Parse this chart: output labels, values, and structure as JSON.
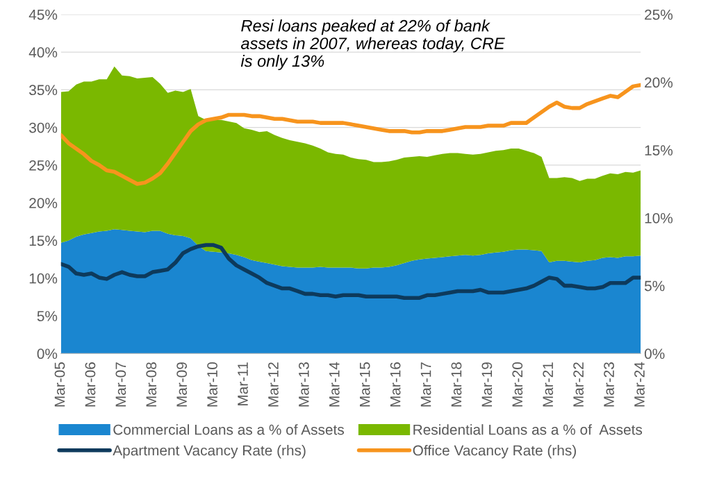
{
  "chart_data": {
    "type": "area",
    "stacked": true,
    "categories": [
      "Mar-05",
      null,
      null,
      null,
      "Mar-06",
      null,
      null,
      null,
      "Mar-07",
      null,
      null,
      null,
      "Mar-08",
      null,
      null,
      null,
      "Mar-09",
      null,
      null,
      null,
      "Mar-10",
      null,
      null,
      null,
      "Mar-11",
      null,
      null,
      null,
      "Mar-12",
      null,
      null,
      null,
      "Mar-13",
      null,
      null,
      null,
      "Mar-14",
      null,
      null,
      null,
      "Mar-15",
      null,
      null,
      null,
      "Mar-16",
      null,
      null,
      null,
      "Mar-17",
      null,
      null,
      null,
      "Mar-18",
      null,
      null,
      null,
      "Mar-19",
      null,
      null,
      null,
      "Mar-20",
      null,
      null,
      null,
      "Mar-21",
      null,
      null,
      null,
      "Mar-22",
      null,
      null,
      null,
      "Mar-23",
      null,
      null,
      null,
      "Mar-24"
    ],
    "series": [
      {
        "name": "Commercial Loans as a % of Assets",
        "color": "#1a86d0",
        "values": [
          14.7,
          15.0,
          15.5,
          15.8,
          16.0,
          16.2,
          16.3,
          16.5,
          16.4,
          16.3,
          16.2,
          16.1,
          16.3,
          16.3,
          15.9,
          15.7,
          15.6,
          15.3,
          14.3,
          13.6,
          13.5,
          13.4,
          13.3,
          13.1,
          12.8,
          12.4,
          12.2,
          12.0,
          11.8,
          11.6,
          11.5,
          11.4,
          11.4,
          11.4,
          11.5,
          11.4,
          11.4,
          11.4,
          11.4,
          11.3,
          11.3,
          11.4,
          11.4,
          11.5,
          11.7,
          12.0,
          12.3,
          12.5,
          12.6,
          12.7,
          12.8,
          12.9,
          13.0,
          13.1,
          13.0,
          13.1,
          13.3,
          13.4,
          13.5,
          13.7,
          13.8,
          13.8,
          13.7,
          13.6,
          12.1,
          12.3,
          12.3,
          12.2,
          12.1,
          12.3,
          12.4,
          12.7,
          12.8,
          12.7,
          12.9,
          12.9,
          13.0
        ]
      },
      {
        "name": "Residential Loans as a % of  Assets",
        "color": "#7ab800",
        "values": [
          20.0,
          19.8,
          20.2,
          20.3,
          20.1,
          20.2,
          20.1,
          21.6,
          20.5,
          20.5,
          20.3,
          20.5,
          20.4,
          19.5,
          18.7,
          19.2,
          19.1,
          19.8,
          17.2,
          17.4,
          17.5,
          17.6,
          17.5,
          17.5,
          17.1,
          17.3,
          17.2,
          17.5,
          17.2,
          17.0,
          16.8,
          16.7,
          16.5,
          16.2,
          15.7,
          15.3,
          15.1,
          15.0,
          14.6,
          14.5,
          14.4,
          14.0,
          14.0,
          14.0,
          14.0,
          14.0,
          13.8,
          13.7,
          13.5,
          13.6,
          13.7,
          13.7,
          13.6,
          13.4,
          13.4,
          13.4,
          13.4,
          13.5,
          13.5,
          13.5,
          13.4,
          13.1,
          12.9,
          12.5,
          11.2,
          11.0,
          11.1,
          11.1,
          10.8,
          10.9,
          10.8,
          10.9,
          11.1,
          11.1,
          11.2,
          11.1,
          11.3
        ]
      },
      {
        "name": "Apartment Vacancy Rate (rhs)",
        "type": "line",
        "axis": "y2",
        "color": "#0d3a5c",
        "values": [
          6.6,
          6.4,
          5.9,
          5.8,
          5.9,
          5.6,
          5.5,
          5.8,
          6.0,
          5.8,
          5.7,
          5.7,
          6.0,
          6.1,
          6.2,
          6.7,
          7.4,
          7.7,
          7.9,
          8.0,
          8.0,
          7.8,
          7.0,
          6.5,
          6.2,
          5.9,
          5.6,
          5.2,
          5.0,
          4.8,
          4.8,
          4.6,
          4.4,
          4.4,
          4.3,
          4.3,
          4.2,
          4.3,
          4.3,
          4.3,
          4.2,
          4.2,
          4.2,
          4.2,
          4.2,
          4.1,
          4.1,
          4.1,
          4.3,
          4.3,
          4.4,
          4.5,
          4.6,
          4.6,
          4.6,
          4.7,
          4.5,
          4.5,
          4.5,
          4.6,
          4.7,
          4.8,
          5.0,
          5.3,
          5.6,
          5.5,
          5.0,
          5.0,
          4.9,
          4.8,
          4.8,
          4.9,
          5.2,
          5.2,
          5.2,
          5.6,
          5.6
        ]
      },
      {
        "name": "Office Vacancy Rate (rhs)",
        "type": "line",
        "axis": "y2",
        "color": "#f7941d",
        "values": [
          16.1,
          15.5,
          15.1,
          14.7,
          14.2,
          13.9,
          13.5,
          13.4,
          13.1,
          12.8,
          12.5,
          12.6,
          12.9,
          13.3,
          14.0,
          14.8,
          15.6,
          16.4,
          16.9,
          17.2,
          17.3,
          17.4,
          17.6,
          17.6,
          17.6,
          17.5,
          17.5,
          17.4,
          17.3,
          17.3,
          17.2,
          17.1,
          17.1,
          17.1,
          17.0,
          17.0,
          17.0,
          17.0,
          16.9,
          16.8,
          16.7,
          16.6,
          16.5,
          16.4,
          16.4,
          16.4,
          16.3,
          16.3,
          16.4,
          16.4,
          16.4,
          16.5,
          16.6,
          16.7,
          16.7,
          16.7,
          16.8,
          16.8,
          16.8,
          17.0,
          17.0,
          17.0,
          17.4,
          17.8,
          18.2,
          18.5,
          18.2,
          18.1,
          18.1,
          18.4,
          18.6,
          18.8,
          19.0,
          18.9,
          19.3,
          19.7,
          19.8
        ]
      }
    ],
    "ylim": [
      0,
      45
    ],
    "yticks": [
      {
        "value": 0,
        "label": "0%"
      },
      {
        "value": 5,
        "label": "5%"
      },
      {
        "value": 10,
        "label": "10%"
      },
      {
        "value": 15,
        "label": "15%"
      },
      {
        "value": 20,
        "label": "20%"
      },
      {
        "value": 25,
        "label": "25%"
      },
      {
        "value": 30,
        "label": "30%"
      },
      {
        "value": 35,
        "label": "35%"
      },
      {
        "value": 40,
        "label": "40%"
      },
      {
        "value": 45,
        "label": "45%"
      }
    ],
    "y2lim": [
      0,
      25
    ],
    "y2ticks": [
      {
        "value": 0,
        "label": "0%"
      },
      {
        "value": 5,
        "label": "5%"
      },
      {
        "value": 10,
        "label": "10%"
      },
      {
        "value": 15,
        "label": "15%"
      },
      {
        "value": 20,
        "label": "20%"
      },
      {
        "value": 25,
        "label": "25%"
      }
    ],
    "grid": "y",
    "legend": "bottom",
    "annotations": [
      "Resi loans peaked at 22% of bank\nassets in 2007, whereas today, CRE\nis only 13%"
    ]
  }
}
